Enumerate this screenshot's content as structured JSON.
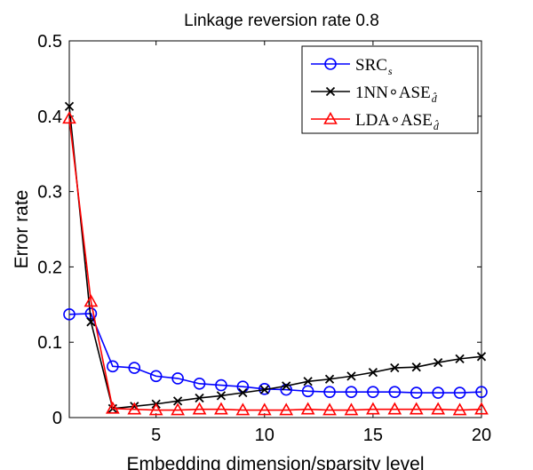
{
  "chart_data": {
    "type": "line",
    "title": "Linkage reversion rate 0.8",
    "xlabel": "Embedding dimension/sparsity level",
    "ylabel": "Error rate",
    "xlim": [
      1,
      20
    ],
    "ylim": [
      0,
      0.5
    ],
    "xticks": [
      5,
      10,
      15,
      20
    ],
    "yticks": [
      0,
      0.1,
      0.2,
      0.3,
      0.4,
      0.5
    ],
    "xtick_labels": [
      "5",
      "10",
      "15",
      "20"
    ],
    "ytick_labels": [
      "0",
      "0.1",
      "0.2",
      "0.3",
      "0.4",
      "0.5"
    ],
    "grid": false,
    "legend_position": "top-right",
    "x": [
      1,
      2,
      3,
      4,
      5,
      6,
      7,
      8,
      9,
      10,
      11,
      12,
      13,
      14,
      15,
      16,
      17,
      18,
      19,
      20
    ],
    "series": [
      {
        "name": "SRC",
        "name_sub": "s",
        "color": "#0000ff",
        "marker": "circle",
        "values": [
          0.137,
          0.138,
          0.068,
          0.066,
          0.055,
          0.052,
          0.045,
          0.043,
          0.041,
          0.038,
          0.037,
          0.035,
          0.034,
          0.034,
          0.034,
          0.034,
          0.033,
          0.033,
          0.033,
          0.034
        ]
      },
      {
        "name": "1NN∘ASE",
        "name_sub": "d̂",
        "color": "#000000",
        "marker": "x",
        "values": [
          0.413,
          0.127,
          0.012,
          0.015,
          0.018,
          0.022,
          0.026,
          0.029,
          0.033,
          0.037,
          0.042,
          0.048,
          0.051,
          0.055,
          0.06,
          0.066,
          0.067,
          0.073,
          0.078,
          0.081
        ]
      },
      {
        "name": "LDA∘ASE",
        "name_sub": "d̂",
        "color": "#ff0000",
        "marker": "triangle",
        "values": [
          0.397,
          0.154,
          0.012,
          0.011,
          0.01,
          0.01,
          0.011,
          0.011,
          0.01,
          0.01,
          0.01,
          0.011,
          0.01,
          0.01,
          0.011,
          0.011,
          0.011,
          0.011,
          0.01,
          0.011
        ]
      }
    ]
  }
}
